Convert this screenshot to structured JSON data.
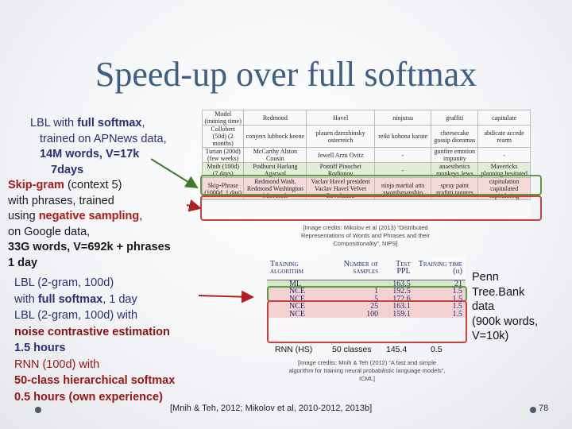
{
  "slide": {
    "title": "Speed-up over full softmax",
    "page_number": "78",
    "footer": "[Mnih & Teh, 2012; Mikolov et al, 2010-2012, 2013b]"
  },
  "left_top": {
    "lbl_pre": "LBL with ",
    "lbl_full": "full softmax",
    "lbl_rest1": ",",
    "lbl_line2": "trained on APNews data,",
    "lbl_line3": "14M words, V=17k",
    "lbl_line4": "7days",
    "skip_head": "Skip-gram",
    "skip_ctx": " (context 5)",
    "skip_line2": "with phrases, trained",
    "skip_line3a": "using ",
    "skip_neg": "negative sampling",
    "skip_line3b": ",",
    "skip_line4": "on Google data,",
    "skip_line5": "33G words, V=692k + phrases",
    "skip_line6": "1 day"
  },
  "left_bottom": {
    "l1": "LBL (2-gram, 100d)",
    "l2a": "with ",
    "l2b": "full softmax",
    "l2c": ", 1 day",
    "l3": "LBL (2-gram, 100d) with",
    "l4": "noise contrastive estimation",
    "l5": "1.5 hours",
    "l6": "RNN (100d) with",
    "l7": "50-class hierarchical softmax",
    "l8": "0.5 hours (own experience)"
  },
  "penn_note": {
    "l1": "Penn",
    "l2": "Tree.Bank",
    "l3": "data",
    "l4": "(900k words,",
    "l5": "V=10k)"
  },
  "table_top": {
    "header": [
      "Model (training time)",
      "Redmond",
      "Havel",
      "ninjutsu",
      "graffiti",
      "capitulate"
    ],
    "rows": [
      [
        "Collobert (50d) (2 months)",
        "conyers lubbock keene",
        "plauen dzerzhinsky osterreich",
        "reiki kohona karate",
        "cheesecake gossip dioramas",
        "abdicate accede rearm"
      ],
      [
        "Turian (200d) (few weeks)",
        "McCarthy Alston Cousin",
        "Jewell Arzu Ovitz",
        "-",
        "gunfire emotion impunity",
        "-"
      ],
      [
        "Mnih (100d) (7 days)",
        "Podhurst Harlang Agarwal",
        "Pontiff Pinochet Rodionov",
        "-",
        "anaesthetics monkeys Jews",
        "Mavericks planning hesitated"
      ],
      [
        "Skip-Phrase (1000d, 1 day)",
        "Redmond Wash. Redmond Washington Microsoft",
        "Vaclav Havel president Vaclav Havel Velvet Revolution",
        "ninja martial arts swordsmanship",
        "spray paint grafitti taggers",
        "capitulation capitulated capitulating"
      ]
    ],
    "caption": "[Image credits: Mikolov et al (2013) “Distributed Representations of Words and Phrases and their Compositionality”, NIPS]"
  },
  "table_bottom": {
    "header": [
      "Training algorithm",
      "Number of samples",
      "Test PPL",
      "Training time (h)"
    ],
    "rows": [
      [
        "ML",
        "",
        "163.5",
        "21"
      ],
      [
        "NCE",
        "1",
        "192.5",
        "1.5"
      ],
      [
        "NCE",
        "5",
        "172.6",
        "1.5"
      ],
      [
        "NCE",
        "25",
        "163.1",
        "1.5"
      ],
      [
        "NCE",
        "100",
        "159.1",
        "1.5"
      ]
    ],
    "rnn_row": [
      "RNN (HS)",
      "50 classes",
      "145.4",
      "0.5"
    ],
    "caption": "[Image credits: Mnih & Teh (2012) “A fast and simple algorithm for training neural probabilistic language models”, ICML]"
  },
  "colors": {
    "title": "#3f5e84",
    "accent_red": "#b01818",
    "text_blue": "#2a2f7a",
    "green_box": "#5e9b3e",
    "red_box": "#c9413f"
  }
}
